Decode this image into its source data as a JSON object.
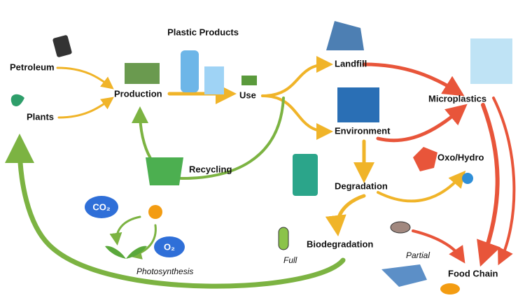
{
  "title": "Plastic Products",
  "nodes": [
    {
      "label": "Petroleum"
    },
    {
      "label": "Plants"
    },
    {
      "label": "Production"
    },
    {
      "label": "Use"
    },
    {
      "label": "Landfill"
    },
    {
      "label": "Environment"
    },
    {
      "label": "Microplastics"
    },
    {
      "label": "Recycling"
    },
    {
      "label": "Degradation"
    },
    {
      "label": "Oxo/Hydro"
    },
    {
      "label": "Biodegradation"
    },
    {
      "label": "Food Chain"
    },
    {
      "label": "Photosynthesis"
    }
  ],
  "edge_labels": [
    "Full",
    "Partial"
  ],
  "icons": [
    "CO₂",
    "O₂"
  ]
}
